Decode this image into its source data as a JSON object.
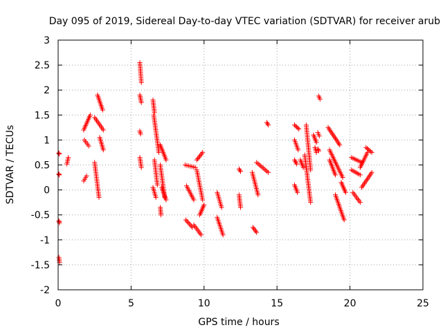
{
  "chart_data": {
    "type": "scatter",
    "title": "Day 095 of 2019, Sidereal Day-to-day VTEC variation (SDTVAR) for receiver arub",
    "xlabel": "GPS time / hours",
    "ylabel": "SDTVAR / TECUs",
    "xlim": [
      0,
      25
    ],
    "ylim": [
      -2,
      3
    ],
    "xticks": [
      "0",
      "5",
      "10",
      "15",
      "20",
      "25"
    ],
    "yticks": [
      "-2",
      "-1.5",
      "-1",
      "-0.5",
      "0",
      "0.5",
      "1",
      "1.5",
      "2",
      "2.5",
      "3"
    ],
    "grid": true,
    "marker": "plus",
    "marker_color": "#ff0000",
    "series": [
      {
        "name": "SDTVAR",
        "tracks": [
          [
            0.05,
            0.74,
            0.07,
            0.72
          ],
          [
            0.05,
            0.32,
            0.07,
            0.3
          ],
          [
            0.05,
            -0.62,
            0.09,
            -0.66
          ],
          [
            0.05,
            -1.35,
            0.1,
            -1.45
          ],
          [
            0.6,
            0.52,
            0.7,
            0.65
          ],
          [
            1.75,
            1.2,
            2.2,
            1.5
          ],
          [
            1.8,
            1.0,
            2.1,
            0.88
          ],
          [
            1.75,
            0.18,
            1.95,
            0.28
          ],
          [
            2.5,
            1.45,
            3.1,
            1.2
          ],
          [
            2.7,
            1.9,
            3.05,
            1.6
          ],
          [
            2.85,
            1.05,
            3.1,
            0.8
          ],
          [
            2.5,
            0.55,
            2.8,
            -0.15
          ],
          [
            5.6,
            2.55,
            5.7,
            2.15
          ],
          [
            5.6,
            1.9,
            5.7,
            1.75
          ],
          [
            5.6,
            1.18,
            5.65,
            1.12
          ],
          [
            5.6,
            0.65,
            5.7,
            0.45
          ],
          [
            6.5,
            1.8,
            6.6,
            1.55
          ],
          [
            6.55,
            1.5,
            6.9,
            0.75
          ],
          [
            6.6,
            0.6,
            6.8,
            0.1
          ],
          [
            6.5,
            0.05,
            6.7,
            -0.15
          ],
          [
            7.0,
            0.9,
            7.4,
            0.6
          ],
          [
            7.0,
            0.5,
            7.3,
            -0.15
          ],
          [
            7.1,
            0.05,
            7.4,
            -0.2
          ],
          [
            7.0,
            -0.35,
            7.05,
            -0.5
          ],
          [
            8.7,
            0.5,
            9.4,
            0.45
          ],
          [
            8.8,
            0.08,
            9.3,
            -0.2
          ],
          [
            8.75,
            -0.6,
            9.2,
            -0.75
          ],
          [
            9.3,
            -0.7,
            9.8,
            -0.9
          ],
          [
            9.5,
            0.6,
            9.9,
            0.75
          ],
          [
            9.5,
            0.4,
            9.9,
            -0.2
          ],
          [
            9.7,
            -0.5,
            10.0,
            -0.3
          ],
          [
            10.9,
            -0.05,
            11.2,
            -0.35
          ],
          [
            10.9,
            -0.55,
            11.3,
            -0.9
          ],
          [
            12.4,
            0.42,
            12.5,
            0.37
          ],
          [
            12.4,
            -0.1,
            12.5,
            -0.35
          ],
          [
            13.3,
            0.35,
            13.7,
            -0.1
          ],
          [
            13.35,
            -0.75,
            13.6,
            -0.85
          ],
          [
            13.6,
            0.55,
            14.4,
            0.35
          ],
          [
            14.3,
            1.35,
            14.4,
            1.3
          ],
          [
            16.2,
            1.3,
            16.5,
            1.22
          ],
          [
            16.2,
            1.0,
            16.45,
            0.8
          ],
          [
            16.2,
            0.6,
            16.35,
            0.52
          ],
          [
            16.2,
            0.1,
            16.4,
            -0.05
          ],
          [
            16.6,
            0.6,
            16.8,
            0.45
          ],
          [
            17.0,
            1.3,
            17.3,
            0.4
          ],
          [
            16.9,
            0.7,
            17.3,
            -0.25
          ],
          [
            17.5,
            1.1,
            17.7,
            0.95
          ],
          [
            17.6,
            0.85,
            17.7,
            0.75
          ],
          [
            17.85,
            1.88,
            17.95,
            1.82
          ],
          [
            17.8,
            1.15,
            17.9,
            1.08
          ],
          [
            17.8,
            0.82,
            17.85,
            0.78
          ],
          [
            18.5,
            1.25,
            19.3,
            0.9
          ],
          [
            18.6,
            0.8,
            19.5,
            0.25
          ],
          [
            18.6,
            0.6,
            19.0,
            0.3
          ],
          [
            19.0,
            -0.1,
            19.6,
            -0.6
          ],
          [
            19.4,
            0.15,
            19.7,
            -0.05
          ],
          [
            20.1,
            0.65,
            20.8,
            0.55
          ],
          [
            20.1,
            0.4,
            20.7,
            0.3
          ],
          [
            20.2,
            -0.05,
            20.7,
            -0.25
          ],
          [
            20.7,
            0.45,
            21.2,
            0.75
          ],
          [
            21.1,
            0.85,
            21.5,
            0.75
          ],
          [
            20.8,
            0.05,
            21.5,
            0.35
          ]
        ]
      }
    ]
  }
}
